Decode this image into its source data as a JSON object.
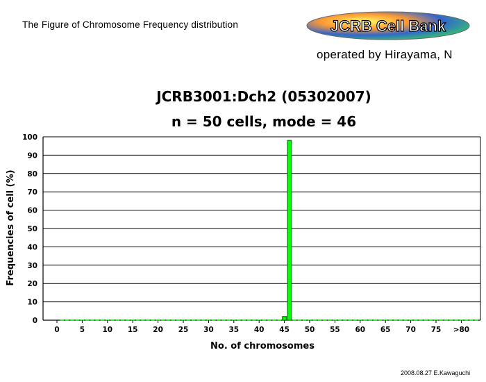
{
  "header": {
    "figure_title": "The Figure of Chromosome Frequency distribution",
    "logo_text": "JCRB Cell Bank",
    "operator": "operated by Hirayama, N"
  },
  "footer": {
    "credit": "2008.08.27 E.Kawaguchi"
  },
  "colors": {
    "bar_fill": "#00ff00",
    "bar_stroke": "#008000",
    "grid": "#000000"
  },
  "chart_data": {
    "type": "bar",
    "title": "JCRB3001:Dch2 (05302007)",
    "subtitle": "n = 50 cells, mode = 46",
    "xlabel": "No. of chromosomes",
    "ylabel": "Frequencies of cell (%)",
    "ylim": [
      0,
      100
    ],
    "yticks": [
      0,
      10,
      20,
      30,
      40,
      50,
      60,
      70,
      80,
      90,
      100
    ],
    "xlim": [
      0,
      83
    ],
    "xticks": [
      "0",
      "5",
      "10",
      "15",
      "20",
      "25",
      "30",
      "35",
      "40",
      "45",
      "50",
      "55",
      "60",
      "65",
      "70",
      "75",
      ">80"
    ],
    "grid": true,
    "bars": [
      {
        "x": 45,
        "value": 2
      },
      {
        "x": 46,
        "value": 98
      }
    ]
  }
}
